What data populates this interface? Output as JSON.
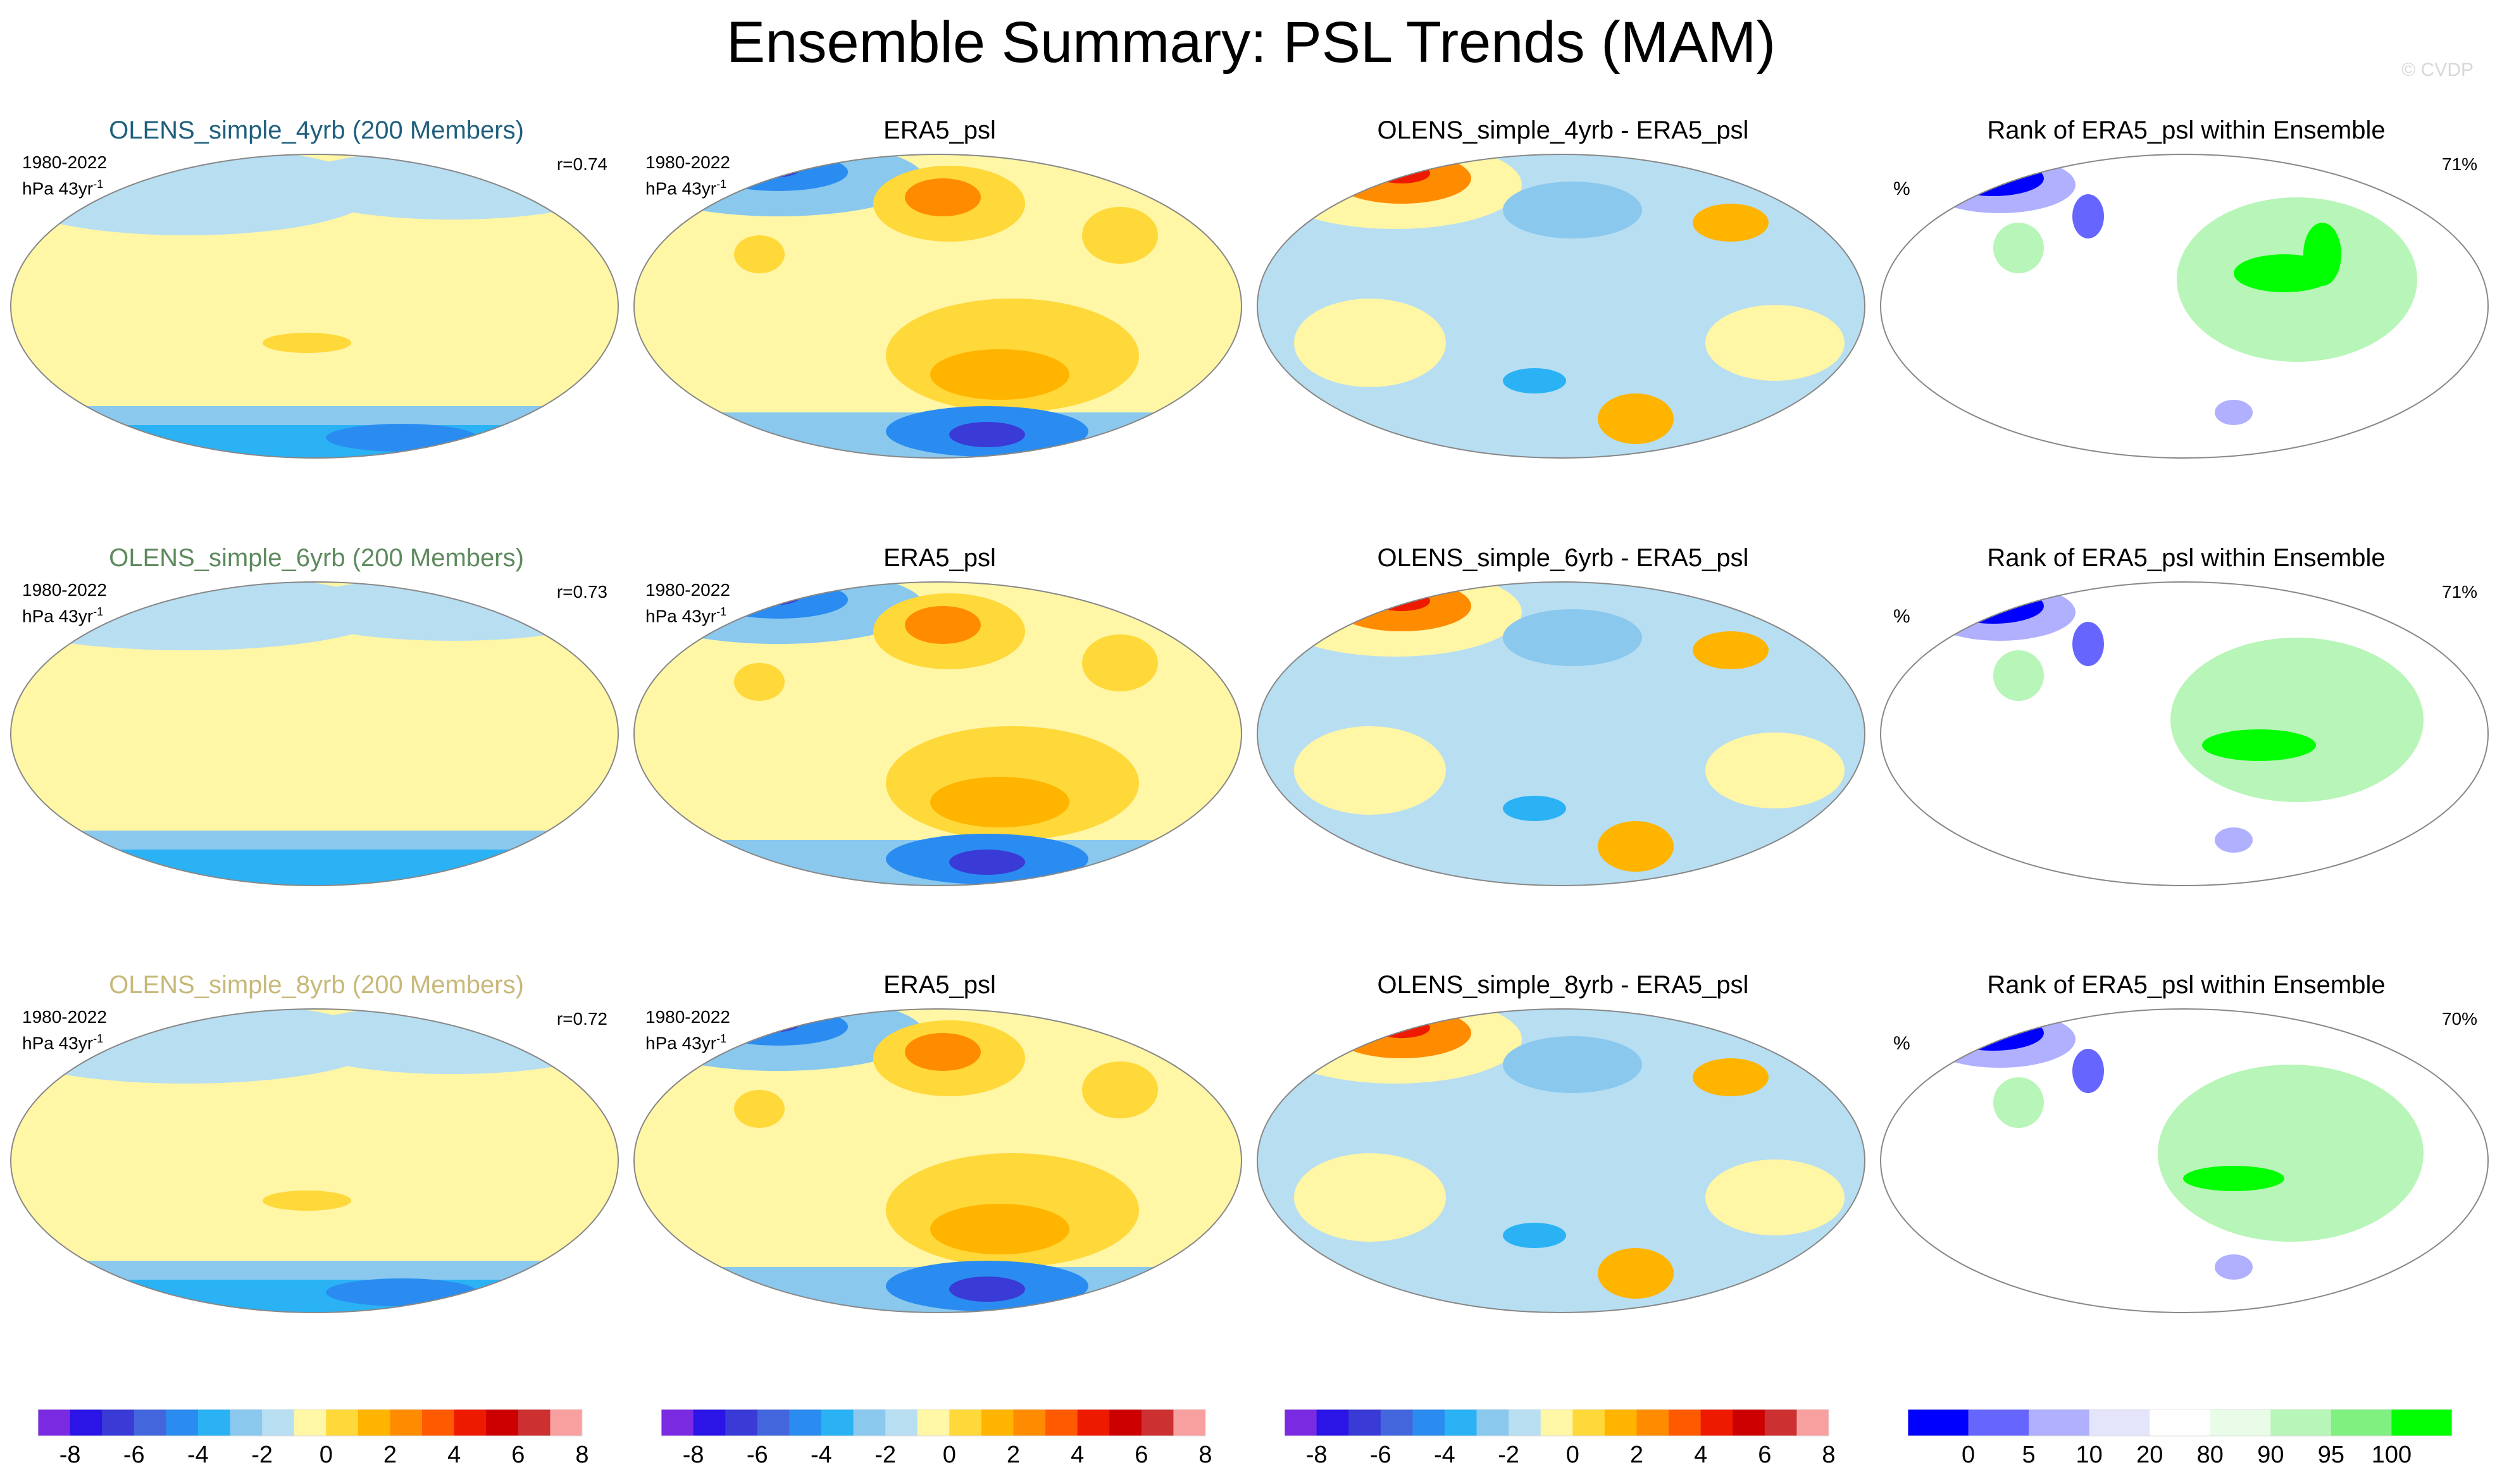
{
  "title": "Ensemble Summary: PSL Trends (MAM)",
  "copyright": "© CVDP",
  "rows": [
    {
      "ensemble_title": "OLENS_simple_4yrb (200 Members)",
      "title_color": "#1f5f7d",
      "period": "1980-2022",
      "units": "hPa 43yr",
      "units_exp": "-1",
      "correlation": "r=0.74",
      "obs_title": "ERA5_psl",
      "diff_title": "OLENS_simple_4yrb - ERA5_psl",
      "rank_title": "Rank of ERA5_psl within Ensemble",
      "rank_pct": "71%",
      "rank_unit": "%"
    },
    {
      "ensemble_title": "OLENS_simple_6yrb (200 Members)",
      "title_color": "#5e8a5e",
      "period": "1980-2022",
      "units": "hPa 43yr",
      "units_exp": "-1",
      "correlation": "r=0.73",
      "obs_title": "ERA5_psl",
      "diff_title": "OLENS_simple_6yrb - ERA5_psl",
      "rank_title": "Rank of ERA5_psl within Ensemble",
      "rank_pct": "71%",
      "rank_unit": "%"
    },
    {
      "ensemble_title": "OLENS_simple_8yrb (200 Members)",
      "title_color": "#c8b97a",
      "period": "1980-2022",
      "units": "hPa 43yr",
      "units_exp": "-1",
      "correlation": "r=0.72",
      "obs_title": "ERA5_psl",
      "diff_title": "OLENS_simple_8yrb - ERA5_psl",
      "rank_title": "Rank of ERA5_psl within Ensemble",
      "rank_pct": "70%",
      "rank_unit": "%"
    }
  ],
  "trend_colorbar": {
    "colors": [
      "#7a2be2",
      "#2a14e6",
      "#3a3ad6",
      "#4466dd",
      "#2a8cf0",
      "#2ab2f5",
      "#8ac8ee",
      "#b8def2",
      "#fff6a6",
      "#ffd83a",
      "#ffb400",
      "#ff8c00",
      "#ff5a00",
      "#ee1a00",
      "#cc0000",
      "#cc3030",
      "#f8a0a0"
    ],
    "labels": [
      "-8",
      "-6",
      "-4",
      "-2",
      "0",
      "2",
      "4",
      "6",
      "8"
    ]
  },
  "rank_colorbar": {
    "colors": [
      "#0000ff",
      "#6666ff",
      "#b0b0ff",
      "#e4e4fa",
      "#ffffff",
      "#e8fce8",
      "#b8f5b8",
      "#80f080",
      "#00ff00"
    ],
    "labels": [
      "0",
      "5",
      "10",
      "20",
      "80",
      "90",
      "95",
      "100"
    ]
  },
  "chart_data": [
    {
      "type": "heatmap",
      "panel": "OLENS_simple_4yrb (200 Members)",
      "description_units": "hPa 43yr-1",
      "colorbar_range": [
        -8,
        8
      ]
    },
    {
      "type": "heatmap",
      "panel": "ERA5_psl",
      "colorbar_range": [
        -8,
        8
      ]
    },
    {
      "type": "heatmap",
      "panel": "OLENS_simple_4yrb - ERA5_psl",
      "colorbar_range": [
        -8,
        8
      ]
    },
    {
      "type": "heatmap",
      "panel": "Rank of ERA5_psl within Ensemble",
      "value": "71%",
      "colorbar_ticks": [
        0,
        5,
        10,
        20,
        80,
        90,
        95,
        100
      ]
    },
    {
      "type": "heatmap",
      "panel": "OLENS_simple_6yrb (200 Members)",
      "colorbar_range": [
        -8,
        8
      ]
    },
    {
      "type": "heatmap",
      "panel": "OLENS_simple_6yrb - ERA5_psl",
      "colorbar_range": [
        -8,
        8
      ]
    },
    {
      "type": "heatmap",
      "panel": "Rank of ERA5_psl within Ensemble",
      "value": "71%"
    },
    {
      "type": "heatmap",
      "panel": "OLENS_simple_8yrb (200 Members)",
      "colorbar_range": [
        -8,
        8
      ]
    },
    {
      "type": "heatmap",
      "panel": "OLENS_simple_8yrb - ERA5_psl",
      "colorbar_range": [
        -8,
        8
      ]
    },
    {
      "type": "heatmap",
      "panel": "Rank of ERA5_psl within Ensemble",
      "value": "70%"
    }
  ]
}
